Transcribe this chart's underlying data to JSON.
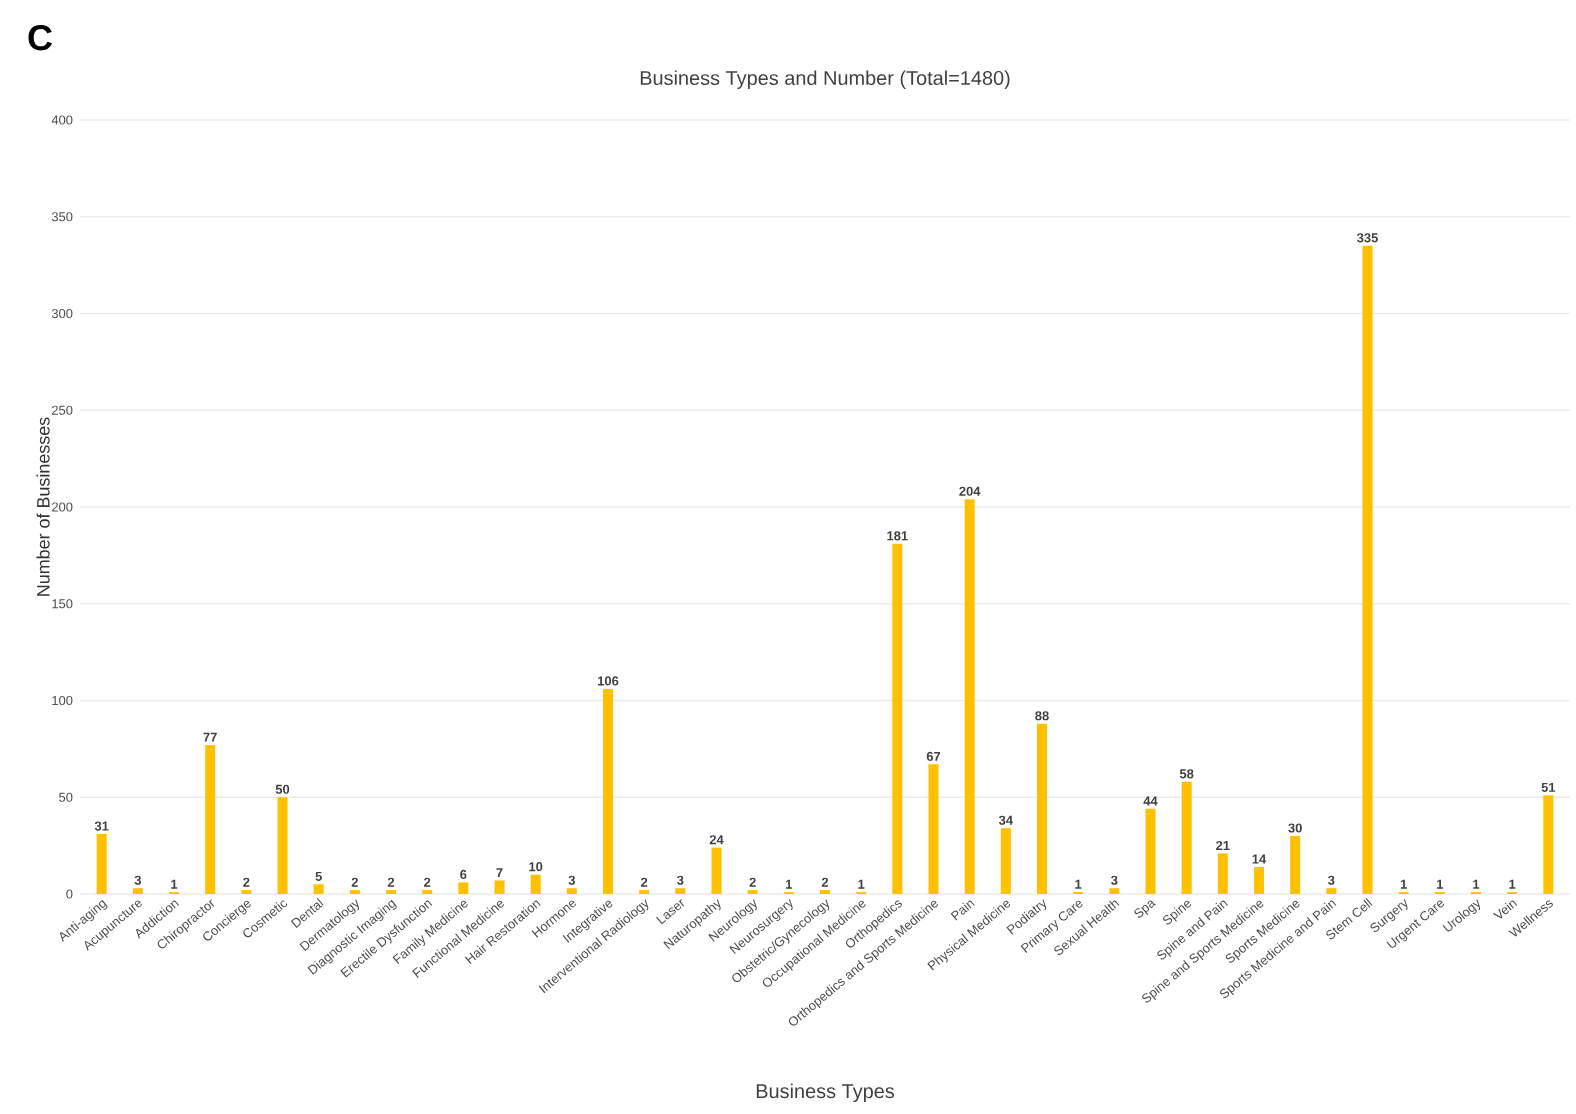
{
  "chart_data": {
    "type": "bar",
    "title": "Business Types and Number (Total=1480)",
    "xlabel": "Business Types",
    "ylabel": "Number of Businesses",
    "annotations": [
      "C"
    ],
    "categories": [
      "Anti-aging",
      "Acupuncture",
      "Addiction",
      "Chiropractor",
      "Concierge",
      "Cosmetic",
      "Dental",
      "Dermatology",
      "Diagnostic Imaging",
      "Erectile Dysfunction",
      "Family Medicine",
      "Functional Medicine",
      "Hair Restoration",
      "Hormone",
      "Integrative",
      "Interventional Radiology",
      "Laser",
      "Naturopathy",
      "Neurology",
      "Neurosurgery",
      "Obstetric/Gynecology",
      "Occupational Medicine",
      "Orthopedics",
      "Orthopedics and Sports Medicine",
      "Pain",
      "Physical Medicine",
      "Podiatry",
      "Primary Care",
      "Sexual Health",
      "Spa",
      "Spine",
      "Spine and Pain",
      "Spine and Sports Medicine",
      "Sports Medicine",
      "Sports Medicine and Pain",
      "Stem Cell",
      "Surgery",
      "Urgent Care",
      "Urology",
      "Vein",
      "Wellness"
    ],
    "values": [
      31,
      3,
      1,
      77,
      2,
      50,
      5,
      2,
      2,
      2,
      6,
      7,
      10,
      3,
      106,
      2,
      3,
      24,
      2,
      1,
      2,
      1,
      181,
      67,
      204,
      34,
      88,
      1,
      3,
      44,
      58,
      21,
      14,
      30,
      3,
      335,
      1,
      1,
      1,
      1,
      51
    ],
    "color": "#ffc000",
    "ylim": [
      0,
      400
    ],
    "yticks": [
      0,
      50,
      100,
      150,
      200,
      250,
      300,
      350,
      400
    ],
    "grid": "y",
    "data_labels": true
  }
}
